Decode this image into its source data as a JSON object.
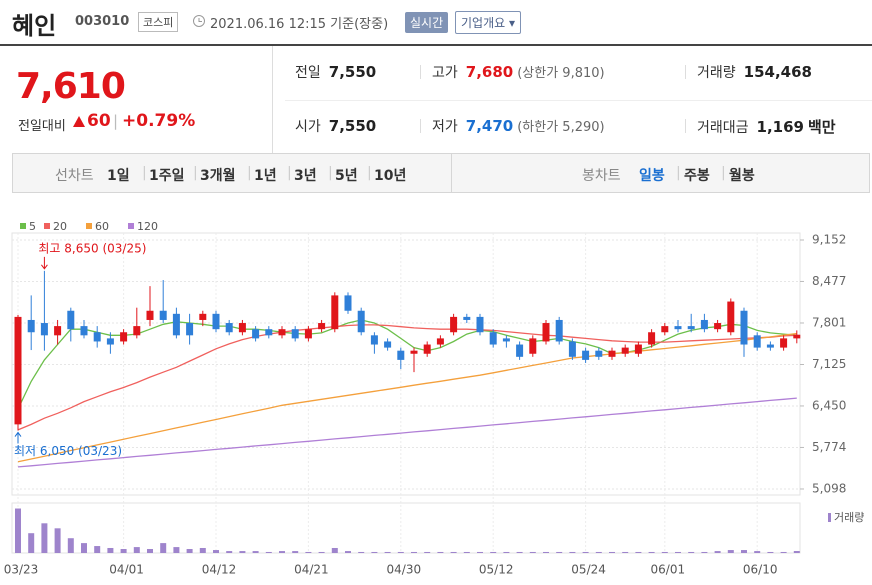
{
  "header": {
    "name": "혜인",
    "code": "003010",
    "market": "코스피",
    "timestamp": "2021.06.16 12:15 기준(장중)",
    "realtime_button": "실시간",
    "company_button": "기업개요"
  },
  "quote": {
    "price": "7,610",
    "change_label": "전일대비",
    "change": "60",
    "change_pct": "+0.79%",
    "stats": [
      [
        {
          "label": "전일",
          "value": "7,550"
        },
        {
          "label": "고가",
          "value": "7,680",
          "note": "(상한가 9,810)",
          "color": "#e0161b"
        },
        {
          "label": "거래량",
          "value": "154,468"
        }
      ],
      [
        {
          "label": "시가",
          "value": "7,550"
        },
        {
          "label": "저가",
          "value": "7,470",
          "note": "(하한가 5,290)",
          "color": "#1a6fd1"
        },
        {
          "label": "거래대금",
          "value": "1,169",
          "unit": "백만"
        }
      ]
    ]
  },
  "tabs": {
    "line_label": "선차트",
    "line_periods": [
      "1일",
      "1주일",
      "3개월",
      "1년",
      "3년",
      "5년",
      "10년"
    ],
    "candle_label": "봉차트",
    "candle_periods": [
      "일봉",
      "주봉",
      "월봉"
    ],
    "active_candle_period": 0
  },
  "chart_data": {
    "type": "candlestick",
    "up_color": "#e0161b",
    "down_color": "#2f7fd8",
    "grid": true,
    "categories": [
      "03/23",
      null,
      null,
      null,
      null,
      null,
      null,
      null,
      "04/01",
      null,
      null,
      null,
      null,
      null,
      null,
      "04/12",
      null,
      null,
      null,
      null,
      null,
      null,
      "04/21",
      null,
      null,
      null,
      null,
      null,
      null,
      "04/30",
      null,
      null,
      null,
      null,
      null,
      null,
      "05/12",
      null,
      null,
      null,
      null,
      null,
      null,
      "05/24",
      null,
      null,
      null,
      null,
      null,
      "06/01",
      null,
      null,
      null,
      null,
      null,
      null,
      "06/10",
      null,
      null,
      null
    ],
    "open": [
      6150,
      7850,
      7800,
      7600,
      8000,
      7750,
      7650,
      7550,
      7500,
      7600,
      7850,
      8000,
      7950,
      7800,
      7850,
      7950,
      7800,
      7650,
      7700,
      7700,
      7600,
      7700,
      7550,
      7700,
      7700,
      8250,
      8000,
      7600,
      7500,
      7350,
      7300,
      7300,
      7450,
      7650,
      7900,
      7900,
      7650,
      7550,
      7450,
      7300,
      7500,
      7850,
      7500,
      7350,
      7350,
      7250,
      7300,
      7300,
      7450,
      7650,
      7750,
      7750,
      7850,
      7700,
      7650,
      8000,
      7600,
      7450,
      7400,
      7550
    ],
    "high": [
      7930,
      8250,
      8650,
      7850,
      8050,
      7850,
      7750,
      7650,
      7700,
      8050,
      8400,
      8500,
      8050,
      7950,
      8000,
      8000,
      7850,
      7850,
      7750,
      7750,
      7750,
      7750,
      7750,
      7850,
      8300,
      8300,
      8050,
      7650,
      7550,
      7400,
      7400,
      7500,
      7600,
      7950,
      7950,
      7950,
      7700,
      7600,
      7500,
      7600,
      7850,
      7900,
      7550,
      7400,
      7400,
      7400,
      7450,
      7500,
      7700,
      7800,
      7850,
      7950,
      7950,
      7850,
      8200,
      8050,
      7650,
      7500,
      7600,
      7680
    ],
    "low": [
      6050,
      7360,
      7350,
      7450,
      7500,
      7550,
      7400,
      7300,
      7450,
      7550,
      7750,
      7800,
      7550,
      7450,
      7750,
      7650,
      7600,
      7600,
      7500,
      7550,
      7550,
      7500,
      7500,
      7650,
      7650,
      7950,
      7600,
      7300,
      7350,
      7050,
      7000,
      7250,
      7400,
      7600,
      7800,
      7600,
      7400,
      7400,
      7200,
      7250,
      7450,
      7450,
      7200,
      7150,
      7200,
      7200,
      7250,
      7250,
      7400,
      7600,
      7650,
      7650,
      7650,
      7650,
      7600,
      7250,
      7350,
      7350,
      7350,
      7470
    ],
    "close": [
      7900,
      7650,
      7600,
      7750,
      7700,
      7600,
      7500,
      7450,
      7650,
      7750,
      8000,
      7850,
      7600,
      7600,
      7950,
      7700,
      7650,
      7800,
      7550,
      7600,
      7700,
      7550,
      7700,
      7800,
      8250,
      8000,
      7650,
      7450,
      7400,
      7200,
      7350,
      7450,
      7550,
      7900,
      7850,
      7650,
      7450,
      7500,
      7250,
      7550,
      7800,
      7500,
      7250,
      7200,
      7250,
      7350,
      7400,
      7450,
      7650,
      7750,
      7700,
      7700,
      7700,
      7800,
      8150,
      7450,
      7400,
      7400,
      7550,
      7610
    ],
    "moving_averages": [
      {
        "name": "5",
        "color": "#6cbf4a",
        "values": [
          6400,
          6850,
          7200,
          7450,
          7700,
          7700,
          7650,
          7600,
          7600,
          7620,
          7700,
          7780,
          7820,
          7800,
          7780,
          7750,
          7750,
          7700,
          7700,
          7680,
          7650,
          7630,
          7620,
          7640,
          7720,
          7800,
          7850,
          7800,
          7700,
          7550,
          7400,
          7350,
          7400,
          7500,
          7620,
          7680,
          7660,
          7600,
          7550,
          7500,
          7520,
          7550,
          7500,
          7460,
          7400,
          7300,
          7320,
          7360,
          7420,
          7520,
          7620,
          7680,
          7720,
          7740,
          7780,
          7760,
          7680,
          7640,
          7620,
          7600
        ]
      },
      {
        "name": "20",
        "color": "#f0605d",
        "values": [
          6060,
          6150,
          6250,
          6330,
          6420,
          6520,
          6600,
          6680,
          6750,
          6830,
          6920,
          7000,
          7080,
          7180,
          7280,
          7380,
          7460,
          7530,
          7580,
          7620,
          7650,
          7680,
          7700,
          7720,
          7740,
          7760,
          7770,
          7770,
          7760,
          7740,
          7720,
          7710,
          7700,
          7700,
          7700,
          7690,
          7680,
          7660,
          7640,
          7620,
          7600,
          7590,
          7570,
          7550,
          7530,
          7510,
          7500,
          7490,
          7490,
          7490,
          7500,
          7510,
          7520,
          7530,
          7540,
          7550,
          7560,
          7570,
          7590,
          7600
        ]
      },
      {
        "name": "60",
        "color": "#f4a03c",
        "values": [
          5540,
          5586,
          5632,
          5678,
          5724,
          5770,
          5816,
          5862,
          5908,
          5954,
          6000,
          6046,
          6092,
          6138,
          6184,
          6230,
          6276,
          6322,
          6368,
          6414,
          6460,
          6493,
          6525,
          6558,
          6591,
          6623,
          6656,
          6689,
          6721,
          6754,
          6787,
          6820,
          6852,
          6885,
          6918,
          6950,
          6990,
          7030,
          7070,
          7110,
          7150,
          7190,
          7230,
          7252,
          7274,
          7297,
          7319,
          7341,
          7364,
          7386,
          7408,
          7430,
          7453,
          7475,
          7497,
          7520,
          7548,
          7575,
          7603,
          7630
        ]
      },
      {
        "name": "120",
        "color": "#b07fd6",
        "values": [
          5457,
          5476,
          5495,
          5514,
          5533,
          5552,
          5571,
          5590,
          5609,
          5628,
          5647,
          5666,
          5685,
          5704,
          5723,
          5742,
          5761,
          5780,
          5799,
          5818,
          5837,
          5856,
          5875,
          5894,
          5913,
          5932,
          5951,
          5970,
          5989,
          6008,
          6027,
          6046,
          6065,
          6084,
          6103,
          6122,
          6141,
          6160,
          6179,
          6198,
          6217,
          6236,
          6255,
          6274,
          6293,
          6312,
          6331,
          6350,
          6369,
          6388,
          6407,
          6426,
          6445,
          6464,
          6483,
          6502,
          6521,
          6540,
          6559,
          6578
        ]
      }
    ],
    "ylim": [
      5000,
      9266
    ],
    "yticks": [
      {
        "value": 9152,
        "label": "9,152"
      },
      {
        "value": 8477,
        "label": "8,477"
      },
      {
        "value": 7801,
        "label": "7,801"
      },
      {
        "value": 7125,
        "label": "7,125"
      },
      {
        "value": 6450,
        "label": "6,450"
      },
      {
        "value": 5774,
        "label": "5,774"
      },
      {
        "value": 5098,
        "label": "5,098"
      }
    ],
    "high_annotation": {
      "label": "최고 8,650 (03/25)",
      "value": 8650
    },
    "low_annotation": {
      "label": "최저 6,050 (03/23)",
      "value": 6050
    },
    "volume": {
      "name": "거래량",
      "color": "#9e84cc",
      "ylim": [
        0,
        3500000
      ],
      "values": [
        3460000,
        1540000,
        2310000,
        1920000,
        1150000,
        770000,
        540000,
        390000,
        310000,
        460000,
        310000,
        770000,
        460000,
        310000,
        390000,
        230000,
        150000,
        150000,
        150000,
        80000,
        150000,
        150000,
        80000,
        80000,
        390000,
        150000,
        80000,
        80000,
        80000,
        80000,
        80000,
        80000,
        80000,
        80000,
        80000,
        80000,
        80000,
        80000,
        80000,
        80000,
        80000,
        80000,
        80000,
        80000,
        80000,
        80000,
        80000,
        80000,
        80000,
        80000,
        80000,
        80000,
        80000,
        150000,
        230000,
        230000,
        150000,
        80000,
        80000,
        154468
      ]
    }
  }
}
